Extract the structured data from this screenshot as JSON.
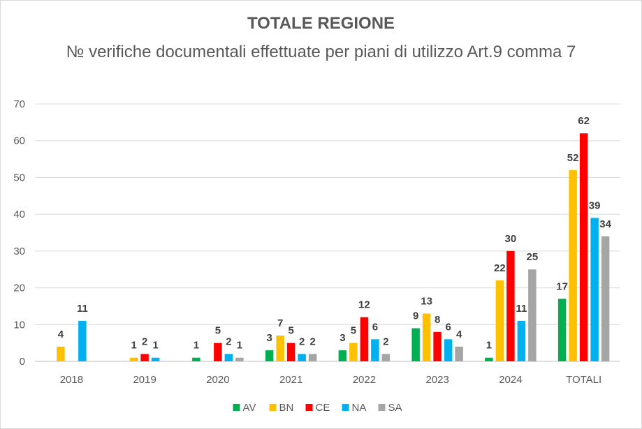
{
  "chart_data": {
    "type": "bar",
    "title": "TOTALE REGIONE",
    "subtitle": "№ verifiche documentali effettuate per piani di utilizzo Art.9 comma 7",
    "xlabel": "",
    "ylabel": "",
    "ylim": [
      0,
      70
    ],
    "yticks": [
      0,
      10,
      20,
      30,
      40,
      50,
      60,
      70
    ],
    "grid": true,
    "legend_position": "bottom",
    "categories": [
      "2018",
      "2019",
      "2020",
      "2021",
      "2022",
      "2023",
      "2024",
      "TOTALI"
    ],
    "series": [
      {
        "name": "AV",
        "color": "#00b050",
        "values": [
          0,
          0,
          1,
          3,
          3,
          9,
          1,
          17
        ],
        "labels": [
          "",
          "",
          "1",
          "3",
          "3",
          "9",
          "1",
          "17"
        ]
      },
      {
        "name": "BN",
        "color": "#ffc000",
        "values": [
          4,
          1,
          0,
          7,
          5,
          13,
          22,
          52
        ],
        "labels": [
          "4",
          "1",
          "",
          "7",
          "5",
          "13",
          "22",
          "52"
        ]
      },
      {
        "name": "CE",
        "color": "#ff0000",
        "values": [
          0,
          2,
          5,
          5,
          12,
          8,
          30,
          62
        ],
        "labels": [
          "",
          "2",
          "5",
          "5",
          "12",
          "8",
          "30",
          "62"
        ]
      },
      {
        "name": "NA",
        "color": "#00b0f0",
        "values": [
          11,
          1,
          2,
          2,
          6,
          6,
          11,
          39
        ],
        "labels": [
          "11",
          "1",
          "2",
          "2",
          "6",
          "6",
          "11",
          "39"
        ]
      },
      {
        "name": "SA",
        "color": "#a5a5a5",
        "values": [
          0,
          0,
          1,
          2,
          2,
          4,
          25,
          34
        ],
        "labels": [
          "",
          "",
          "1",
          "2",
          "2",
          "4",
          "25",
          "34"
        ]
      }
    ]
  }
}
